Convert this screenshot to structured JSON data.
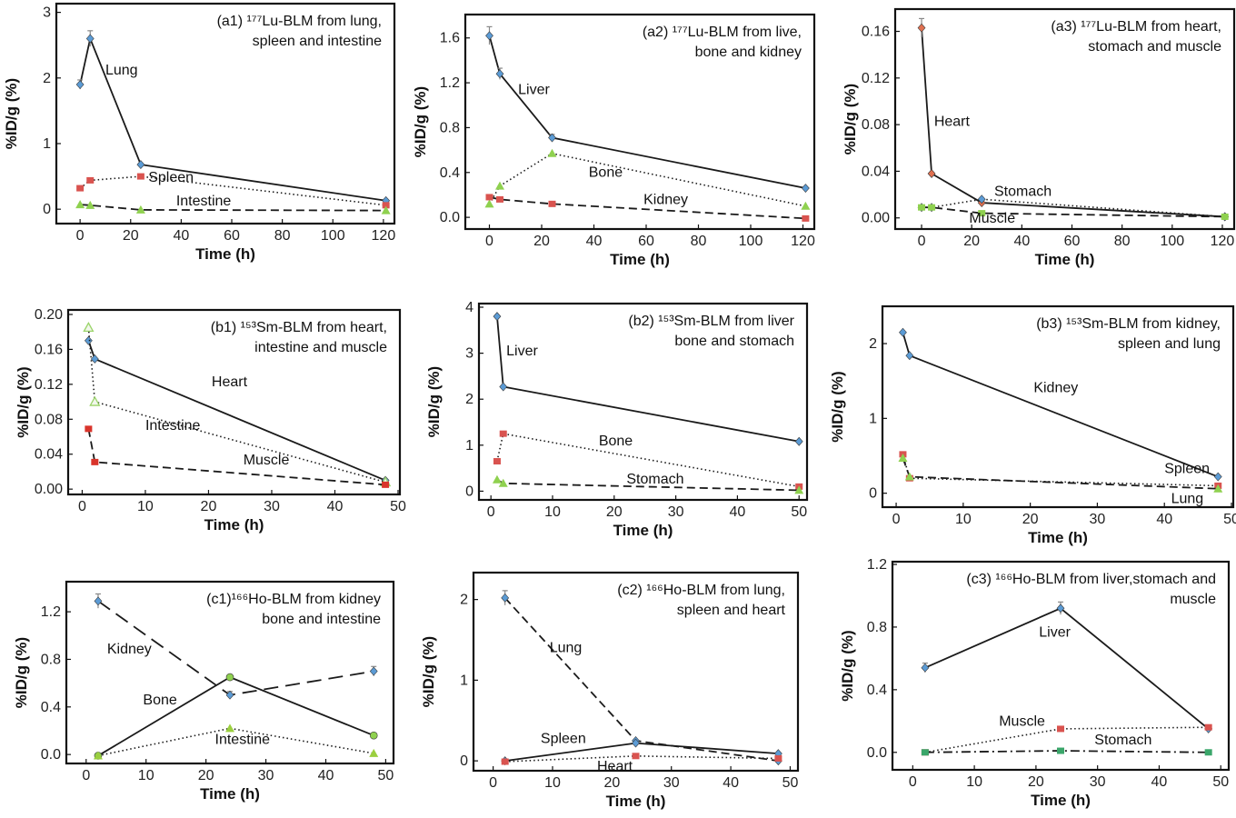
{
  "chart_data": [
    {
      "id": "a1",
      "type": "line",
      "title": [
        "(a1) ¹⁷⁷Lu-BLM from lung,",
        "spleen and intestine"
      ],
      "xlabel": "Time (h)",
      "ylabel": "%ID/g (%)",
      "xlim": [
        -4,
        124
      ],
      "ylim": [
        -0.15,
        3.05
      ],
      "xticks": [
        "0",
        "20",
        "40",
        "60",
        "80",
        "100",
        "120"
      ],
      "yticks": [
        "0",
        "1",
        "2",
        "3"
      ],
      "series": [
        {
          "name": "Lung",
          "x": [
            0,
            4,
            24,
            121
          ],
          "values": [
            1.9,
            2.6,
            0.68,
            0.13
          ],
          "err": [
            0.07,
            0.12,
            0.02,
            0
          ],
          "style": "solid",
          "marker": "diamond",
          "marker_color": "#5b9bd5",
          "label_at": [
            10,
            2.05
          ]
        },
        {
          "name": "Spleen",
          "x": [
            0,
            4,
            24,
            121
          ],
          "values": [
            0.32,
            0.44,
            0.5,
            0.06
          ],
          "style": "dotted",
          "marker": "square",
          "marker_color": "#d9534f",
          "label_at": [
            27,
            0.42
          ]
        },
        {
          "name": "Intestine",
          "x": [
            0,
            4,
            24,
            121
          ],
          "values": [
            0.07,
            0.06,
            -0.01,
            -0.02
          ],
          "style": "dashed",
          "marker": "triangle",
          "marker_color": "#8fd14f",
          "label_at": [
            38,
            0.06
          ]
        }
      ]
    },
    {
      "id": "a2",
      "type": "line",
      "title": [
        "(a2) ¹⁷⁷Lu-BLM from live,",
        "bone and kidney"
      ],
      "xlabel": "Time (h)",
      "ylabel": "%ID/g (%)",
      "xlim": [
        -4,
        124
      ],
      "ylim": [
        -0.08,
        1.76
      ],
      "xticks": [
        "0",
        "20",
        "40",
        "60",
        "80",
        "100",
        "120"
      ],
      "yticks": [
        "0.0",
        "0.4",
        "0.8",
        "1.2",
        "1.6"
      ],
      "series": [
        {
          "name": "Liver",
          "x": [
            0,
            4,
            24,
            121
          ],
          "values": [
            1.62,
            1.28,
            0.71,
            0.26
          ],
          "err": [
            0.08,
            0.05,
            0.03,
            0
          ],
          "style": "solid",
          "marker": "diamond",
          "marker_color": "#5b9bd5",
          "label_at": [
            11,
            1.1
          ]
        },
        {
          "name": "Bone",
          "x": [
            0,
            4,
            24,
            121
          ],
          "values": [
            0.12,
            0.28,
            0.57,
            0.1
          ],
          "style": "dotted",
          "marker": "triangle",
          "marker_color": "#8fd14f",
          "label_at": [
            38,
            0.36
          ]
        },
        {
          "name": "Kidney",
          "x": [
            0,
            4,
            24,
            121
          ],
          "values": [
            0.18,
            0.16,
            0.12,
            -0.01
          ],
          "style": "dashed",
          "marker": "square",
          "marker_color": "#d9534f",
          "label_at": [
            59,
            0.12
          ]
        }
      ]
    },
    {
      "id": "a3",
      "type": "line",
      "title": [
        "(a3) ¹⁷⁷Lu-BLM from heart,",
        "stomach and muscle"
      ],
      "xlabel": "Time (h)",
      "ylabel": "%ID/g (%)",
      "xlim": [
        -4,
        124
      ],
      "ylim": [
        -0.008,
        0.176
      ],
      "xticks": [
        "0",
        "20",
        "40",
        "60",
        "80",
        "100",
        "120"
      ],
      "yticks": [
        "0.00",
        "0.04",
        "0.08",
        "0.12",
        "0.16"
      ],
      "series": [
        {
          "name": "Heart",
          "x": [
            0,
            4,
            24,
            121
          ],
          "values": [
            0.163,
            0.038,
            0.013,
            0.001
          ],
          "err": [
            0.008,
            0,
            0,
            0
          ],
          "style": "solid",
          "marker": "diamond",
          "marker_color": "#e07050",
          "label_at": [
            5,
            0.079
          ]
        },
        {
          "name": "Stomach",
          "x": [
            0,
            4,
            24,
            121
          ],
          "values": [
            0.009,
            0.009,
            0.016,
            0.001
          ],
          "style": "dotted",
          "marker": "diamond",
          "marker_color": "#5b9bd5",
          "label_at": [
            29,
            0.019
          ]
        },
        {
          "name": "Muscle",
          "x": [
            0,
            4,
            24,
            121
          ],
          "values": [
            0.009,
            0.009,
            0.004,
            0.001
          ],
          "style": "dashed",
          "marker": "square",
          "marker_color": "#8fd14f",
          "label_at": [
            19,
            -0.004
          ]
        }
      ]
    },
    {
      "id": "b1",
      "type": "line",
      "title": [
        "(b1) ¹⁵³Sm-BLM from heart,",
        "intestine and muscle"
      ],
      "xlabel": "Time (h)",
      "ylabel": "%ID/g (%)",
      "xlim": [
        -1.5,
        50
      ],
      "ylim": [
        -0.004,
        0.201
      ],
      "xticks": [
        "0",
        "10",
        "20",
        "30",
        "40",
        "50"
      ],
      "yticks": [
        "0.00",
        "0.04",
        "0.08",
        "0.12",
        "0.16",
        "0.20"
      ],
      "series": [
        {
          "name": "Heart",
          "x": [
            1,
            2,
            48
          ],
          "values": [
            0.17,
            0.149,
            0.01
          ],
          "style": "solid",
          "marker": "diamond",
          "marker_color": "#5b9bd5",
          "label_at": [
            20.5,
            0.118
          ]
        },
        {
          "name": "Intestine",
          "x": [
            1,
            2,
            48
          ],
          "values": [
            0.185,
            0.1,
            0.008
          ],
          "style": "dotted",
          "marker": "triangle-open",
          "marker_color": "#9bd46a",
          "label_at": [
            10,
            0.068
          ]
        },
        {
          "name": "Muscle",
          "x": [
            1,
            2,
            48
          ],
          "values": [
            0.069,
            0.031,
            0.005
          ],
          "style": "dashed",
          "marker": "square",
          "marker_color": "#d9342b",
          "label_at": [
            25.5,
            0.028
          ]
        }
      ]
    },
    {
      "id": "b2",
      "type": "line",
      "title": [
        "(b2) ¹⁵³Sm-BLM from liver",
        "bone and stomach"
      ],
      "xlabel": "Time (h)",
      "ylabel": "%ID/g (%)",
      "xlim": [
        -1.5,
        51
      ],
      "ylim": [
        -0.15,
        4.0
      ],
      "xticks": [
        "0",
        "10",
        "20",
        "30",
        "40",
        "50"
      ],
      "yticks": [
        "0",
        "1",
        "2",
        "3",
        "4"
      ],
      "series": [
        {
          "name": "Liver",
          "x": [
            1,
            2,
            50
          ],
          "values": [
            3.8,
            2.27,
            1.08
          ],
          "style": "solid",
          "marker": "diamond",
          "marker_color": "#5b9bd5",
          "label_at": [
            2.5,
            2.95
          ]
        },
        {
          "name": "Bone",
          "x": [
            1,
            2,
            50
          ],
          "values": [
            0.65,
            1.25,
            0.1
          ],
          "style": "dotted",
          "marker": "square",
          "marker_color": "#d9534f",
          "label_at": [
            17.5,
            1.0
          ]
        },
        {
          "name": "Stomach",
          "x": [
            1,
            2,
            50
          ],
          "values": [
            0.25,
            0.17,
            0.02
          ],
          "style": "dashed",
          "marker": "triangle",
          "marker_color": "#8fd14f",
          "label_at": [
            22,
            0.17
          ]
        }
      ]
    },
    {
      "id": "b3",
      "type": "line",
      "title": [
        "(b3) ¹⁵³Sm-BLM from kidney,",
        "spleen and lung"
      ],
      "xlabel": "Time (h)",
      "ylabel": "%ID/g (%)",
      "xlim": [
        -1.5,
        50
      ],
      "ylim": [
        -0.15,
        2.45
      ],
      "xticks": [
        "0",
        "10",
        "20",
        "30",
        "40",
        "50"
      ],
      "yticks": [
        "0",
        "1",
        "2"
      ],
      "series": [
        {
          "name": "Kidney",
          "x": [
            1,
            2,
            48
          ],
          "values": [
            2.15,
            1.84,
            0.22
          ],
          "style": "solid",
          "marker": "diamond",
          "marker_color": "#5b9bd5",
          "label_at": [
            20.5,
            1.35
          ]
        },
        {
          "name": "Spleen",
          "x": [
            1,
            2,
            48
          ],
          "values": [
            0.52,
            0.2,
            0.1
          ],
          "style": "dotted",
          "marker": "square",
          "marker_color": "#d9534f",
          "label_at": [
            40,
            0.27
          ]
        },
        {
          "name": "Lung",
          "x": [
            1,
            2,
            48
          ],
          "values": [
            0.47,
            0.22,
            0.06
          ],
          "style": "dashed",
          "marker": "triangle",
          "marker_color": "#8fd14f",
          "label_at": [
            41,
            -0.13
          ]
        }
      ]
    },
    {
      "id": "c1",
      "type": "line",
      "title": [
        "(c1)¹⁶⁶Ho-BLM from kidney",
        "bone and intestine"
      ],
      "xlabel": "Time (h)",
      "ylabel": "%ID/g (%)",
      "xlim": [
        -3,
        51
      ],
      "ylim": [
        -0.06,
        1.43
      ],
      "xticks": [
        "0",
        "10",
        "20",
        "30",
        "40",
        "50"
      ],
      "yticks": [
        "0.0",
        "0.4",
        "0.8",
        "1.2"
      ],
      "series": [
        {
          "name": "Kidney",
          "x": [
            2,
            24,
            48
          ],
          "values": [
            1.29,
            0.5,
            0.7
          ],
          "err": [
            0.06,
            0.03,
            0.04
          ],
          "style": "longdash",
          "marker": "diamond",
          "marker_color": "#5b9bd5",
          "label_at": [
            3.5,
            0.85
          ]
        },
        {
          "name": "Bone",
          "x": [
            2,
            24,
            48
          ],
          "values": [
            -0.01,
            0.65,
            0.16
          ],
          "style": "solid",
          "marker": "circle",
          "marker_color": "#8fd14f",
          "label_at": [
            9.5,
            0.42
          ]
        },
        {
          "name": "Intestine",
          "x": [
            2,
            24,
            48
          ],
          "values": [
            -0.01,
            0.22,
            0.01
          ],
          "style": "dotted",
          "marker": "triangle",
          "marker_color": "#9bcf3f",
          "label_at": [
            21.5,
            0.09
          ]
        }
      ]
    },
    {
      "id": "c2",
      "type": "line",
      "title": [
        "(c2) ¹⁶⁶Ho-BLM from lung,",
        "spleen and heart"
      ],
      "xlabel": "Time (h)",
      "ylabel": "%ID/g (%)",
      "xlim": [
        -3,
        51
      ],
      "ylim": [
        -0.1,
        2.3
      ],
      "xticks": [
        "0",
        "10",
        "20",
        "30",
        "40",
        "50"
      ],
      "yticks": [
        "0",
        "1",
        "2"
      ],
      "series": [
        {
          "name": "Lung",
          "x": [
            2,
            24,
            48
          ],
          "values": [
            2.02,
            0.25,
            0.0
          ],
          "err": [
            0.09,
            0,
            0
          ],
          "style": "dashed",
          "marker": "diamond",
          "marker_color": "#5b9bd5",
          "label_at": [
            9.5,
            1.35
          ]
        },
        {
          "name": "Spleen",
          "x": [
            2,
            24,
            48
          ],
          "values": [
            0.0,
            0.22,
            0.09
          ],
          "style": "solid",
          "marker": "diamond",
          "marker_color": "#5b9bd5",
          "label_at": [
            8,
            0.22
          ]
        },
        {
          "name": "Heart",
          "x": [
            2,
            24,
            48
          ],
          "values": [
            -0.01,
            0.06,
            0.03
          ],
          "style": "dotted",
          "marker": "square",
          "marker_color": "#d9534f",
          "label_at": [
            17.5,
            -0.12
          ]
        }
      ]
    },
    {
      "id": "c3",
      "type": "line",
      "title": [
        "(c3) ¹⁶⁶Ho-BLM from liver,stomach and",
        "muscle"
      ],
      "xlabel": "Time (h)",
      "ylabel": "%ID/g (%)",
      "xlim": [
        -3,
        51
      ],
      "ylim": [
        -0.1,
        1.2
      ],
      "xticks": [
        "0",
        "10",
        "20",
        "30",
        "40",
        "50"
      ],
      "yticks": [
        "0.0",
        "0.4",
        "0.8",
        "1.2"
      ],
      "series": [
        {
          "name": "Liver",
          "x": [
            2,
            24,
            48
          ],
          "values": [
            0.54,
            0.92,
            0.15
          ],
          "err": [
            0.03,
            0.04,
            0
          ],
          "style": "solid",
          "marker": "diamond",
          "marker_color": "#5b9bd5",
          "label_at": [
            20.5,
            0.74
          ]
        },
        {
          "name": "Muscle",
          "x": [
            2,
            24,
            48
          ],
          "values": [
            0.0,
            0.15,
            0.16
          ],
          "style": "dotted",
          "marker": "square",
          "marker_color": "#d9534f",
          "label_at": [
            14,
            0.17
          ]
        },
        {
          "name": "Stomach",
          "x": [
            2,
            24,
            48
          ],
          "values": [
            0.0,
            0.01,
            0.0
          ],
          "style": "dashdot",
          "marker": "square",
          "marker_color": "#3aa66a",
          "label_at": [
            29.5,
            0.05
          ]
        }
      ]
    }
  ]
}
